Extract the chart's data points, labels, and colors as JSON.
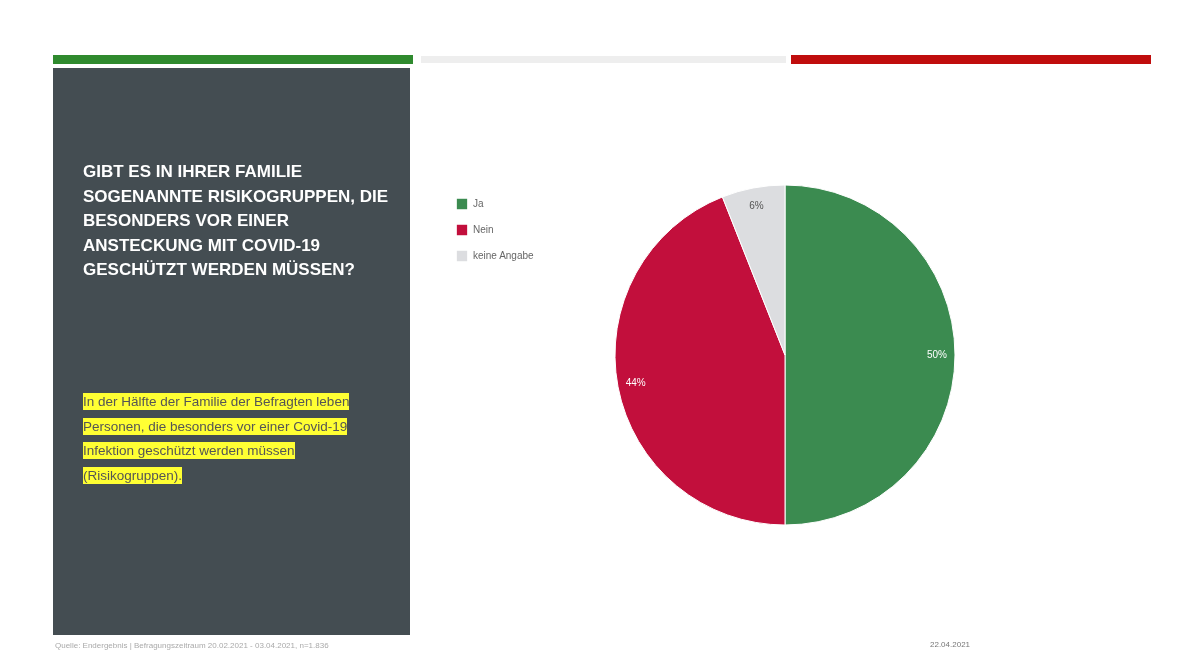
{
  "chart_data": {
    "type": "pie",
    "title": "GIBT ES IN IHRER FAMILIE SOGENANNTE RISIKOGRUPPEN, DIE BESONDERS VOR EINER ANSTECKUNG MIT COVID-19 GESCHÜTZT WERDEN MÜSSEN?",
    "subtitle": "In der Hälfte der Familie der Befragten leben Personen, die besonders vor einer Covid-19 Infektion geschützt werden müssen (Risikogruppen).",
    "categories": [
      "Ja",
      "Nein",
      "keine Angabe"
    ],
    "values": [
      50,
      44,
      6
    ],
    "colors": [
      "#3b8b50",
      "#c20f3c",
      "#dcdde0"
    ],
    "value_labels": [
      "50%",
      "44%",
      "6%"
    ],
    "legend": "top left",
    "annotations": [
      "Quelle: Endergebnis | Befragungszeitraum 20.02.2021 - 03.04.2021, n=1.836",
      "22.04.2021"
    ]
  }
}
